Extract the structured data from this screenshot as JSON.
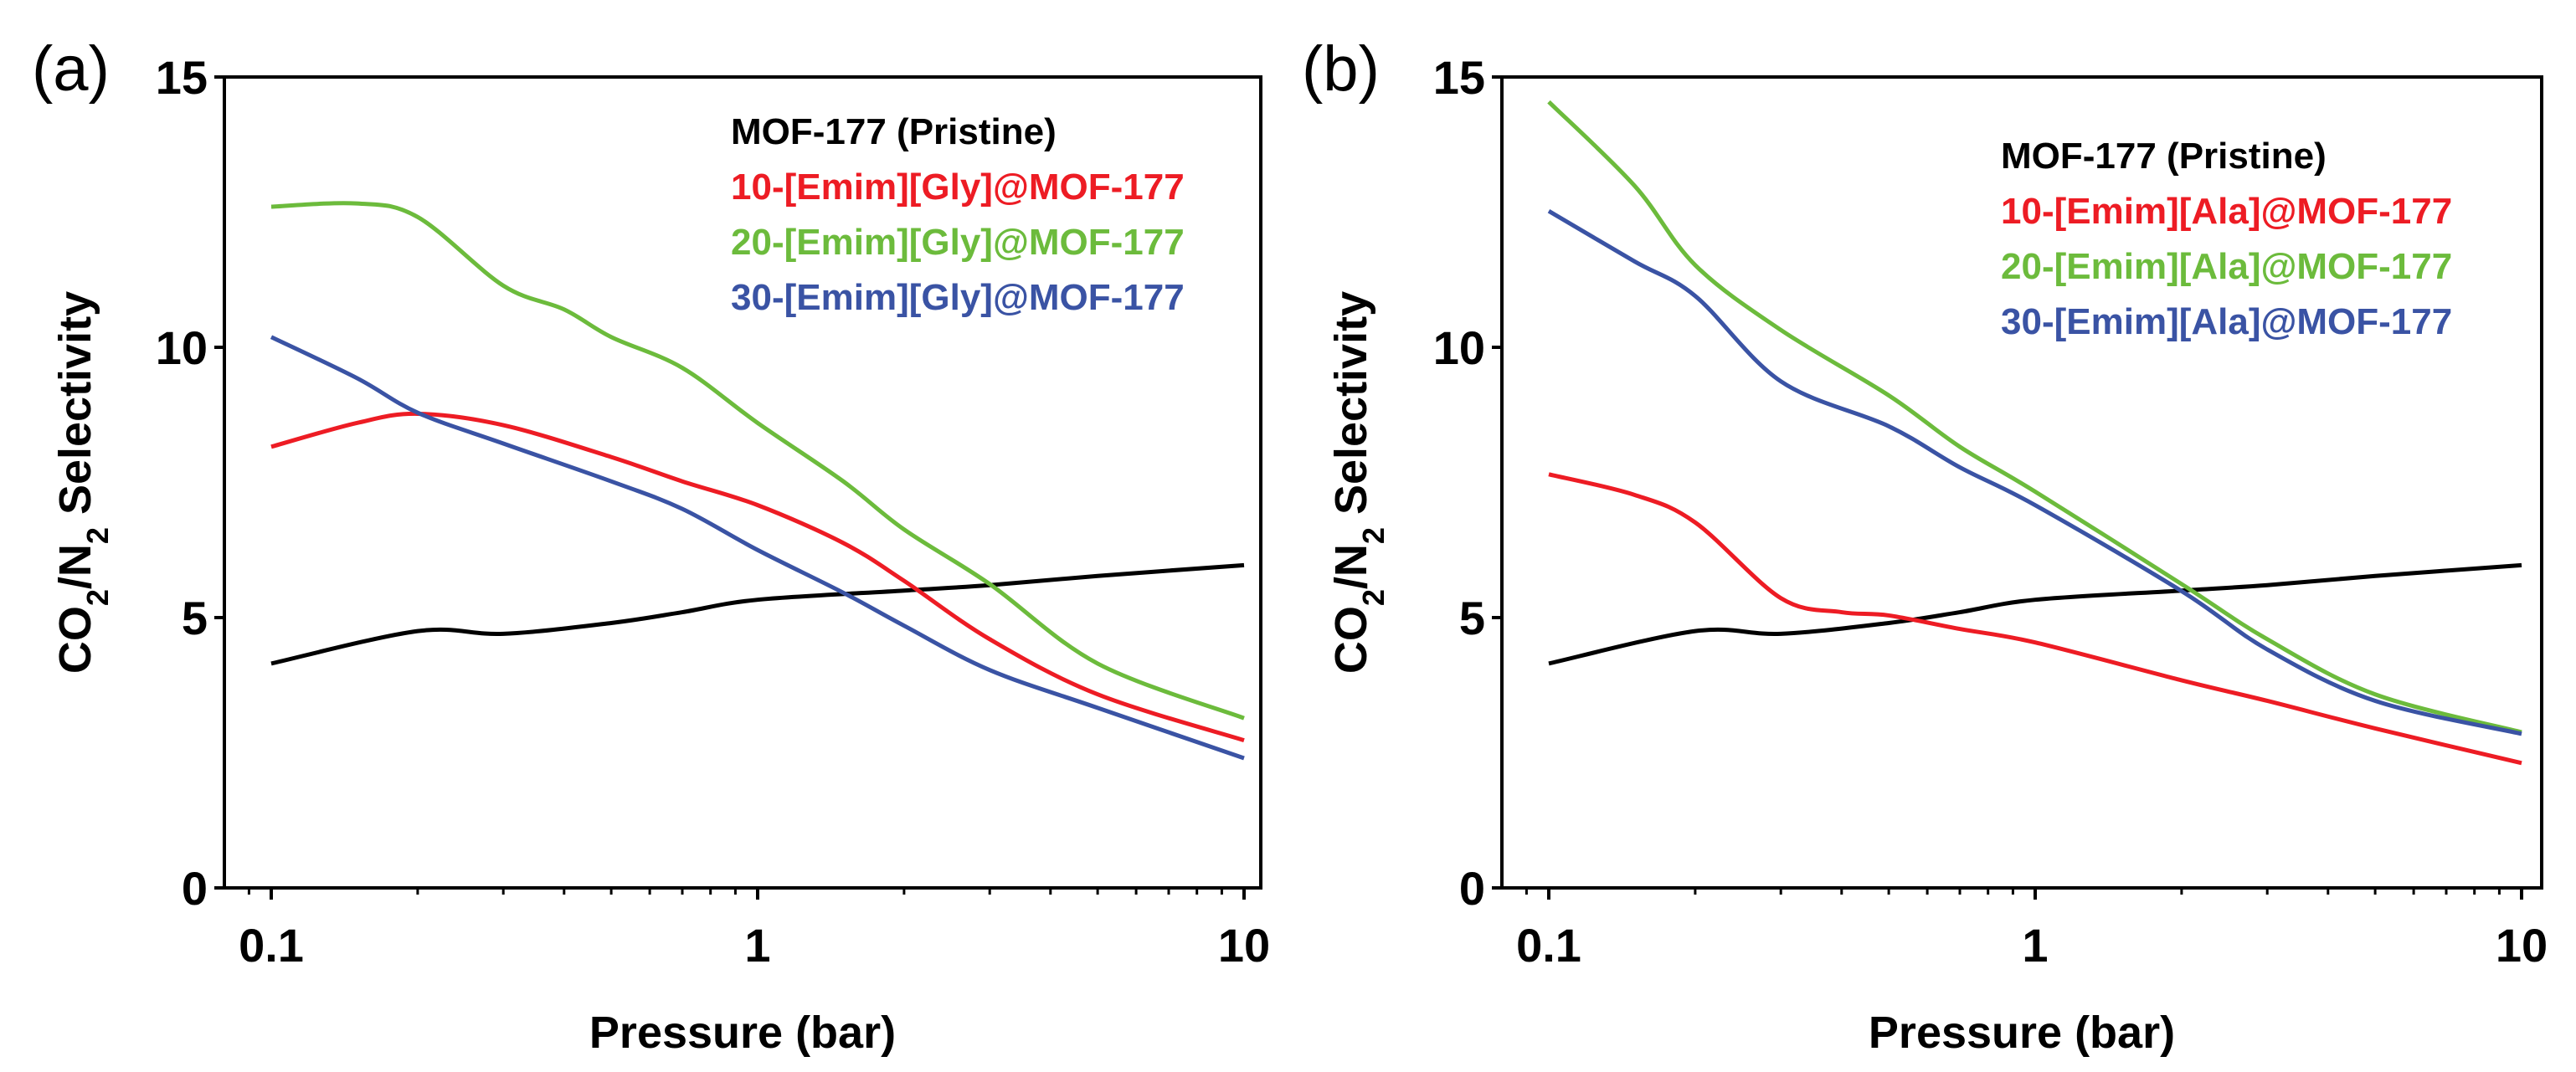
{
  "chart_data": [
    {
      "panel_label": "(a)",
      "type": "line",
      "xscale": "log",
      "xlim": [
        0.08,
        11
      ],
      "ylim": [
        0,
        15
      ],
      "xticks": [
        "0.1",
        "1",
        "10"
      ],
      "yticks": [
        "0",
        "5",
        "10",
        "15"
      ],
      "xlabel": "Pressure (bar)",
      "ylabel_parts": [
        "CO",
        "2",
        "/N",
        "2",
        " Selectivity"
      ],
      "grid": false,
      "legend_position": "top-right",
      "series": [
        {
          "name": "MOF-177 (Pristine)",
          "color": "#000000",
          "x": [
            0.1,
            0.2,
            0.3,
            0.5,
            0.7,
            1,
            2,
            3,
            5,
            10
          ],
          "y": [
            4.15,
            4.75,
            4.7,
            4.9,
            5.1,
            5.33,
            5.5,
            5.6,
            5.77,
            5.97
          ]
        },
        {
          "name": "10-[Emim][Gly]@MOF-177",
          "color": "#ed1c24",
          "x": [
            0.1,
            0.15,
            0.2,
            0.3,
            0.5,
            0.7,
            1,
            1.5,
            2,
            3,
            5,
            10
          ],
          "y": [
            8.16,
            8.6,
            8.77,
            8.56,
            7.97,
            7.52,
            7.08,
            6.38,
            5.68,
            4.6,
            3.58,
            2.73
          ]
        },
        {
          "name": "20-[Emim][Gly]@MOF-177",
          "color": "#6cbb3c",
          "x": [
            0.1,
            0.15,
            0.2,
            0.3,
            0.4,
            0.5,
            0.7,
            1,
            1.5,
            2,
            3,
            5,
            10
          ],
          "y": [
            12.6,
            12.66,
            12.41,
            11.14,
            10.7,
            10.19,
            9.62,
            8.6,
            7.52,
            6.63,
            5.62,
            4.15,
            3.14
          ]
        },
        {
          "name": "30-[Emim][Gly]@MOF-177",
          "color": "#3a53a4",
          "x": [
            0.1,
            0.15,
            0.2,
            0.3,
            0.5,
            0.7,
            1,
            1.5,
            2,
            3,
            5,
            10
          ],
          "y": [
            10.19,
            9.43,
            8.79,
            8.22,
            7.52,
            7.01,
            6.25,
            5.46,
            4.85,
            4.03,
            3.33,
            2.4
          ]
        }
      ]
    },
    {
      "panel_label": "(b)",
      "type": "line",
      "xscale": "log",
      "xlim": [
        0.08,
        11
      ],
      "ylim": [
        0,
        15
      ],
      "xticks": [
        "0.1",
        "1",
        "10"
      ],
      "yticks": [
        "0",
        "5",
        "10",
        "15"
      ],
      "xlabel": "Pressure (bar)",
      "ylabel_parts": [
        "CO",
        "2",
        "/N",
        "2",
        " Selectivity"
      ],
      "grid": false,
      "legend_position": "top-right",
      "series": [
        {
          "name": "MOF-177 (Pristine)",
          "color": "#000000",
          "x": [
            0.1,
            0.2,
            0.3,
            0.5,
            0.7,
            1,
            2,
            3,
            5,
            10
          ],
          "y": [
            4.15,
            4.75,
            4.7,
            4.9,
            5.1,
            5.33,
            5.5,
            5.6,
            5.77,
            5.97
          ]
        },
        {
          "name": "10-[Emim][Ala]@MOF-177",
          "color": "#ed1c24",
          "x": [
            0.1,
            0.15,
            0.2,
            0.3,
            0.4,
            0.5,
            0.7,
            1,
            2,
            3,
            5,
            10
          ],
          "y": [
            7.65,
            7.27,
            6.76,
            5.36,
            5.1,
            5.04,
            4.79,
            4.54,
            3.84,
            3.46,
            2.95,
            2.31
          ]
        },
        {
          "name": "20-[Emim][Ala]@MOF-177",
          "color": "#6cbb3c",
          "x": [
            0.1,
            0.15,
            0.2,
            0.3,
            0.5,
            0.7,
            1,
            2,
            3,
            5,
            10
          ],
          "y": [
            14.54,
            12.99,
            11.52,
            10.32,
            9.11,
            8.16,
            7.33,
            5.62,
            4.6,
            3.58,
            2.88
          ]
        },
        {
          "name": "30-[Emim][Ala]@MOF-177",
          "color": "#3a53a4",
          "x": [
            0.1,
            0.15,
            0.2,
            0.3,
            0.5,
            0.7,
            1,
            2,
            3,
            5,
            10
          ],
          "y": [
            12.52,
            11.59,
            10.95,
            9.37,
            8.54,
            7.78,
            7.08,
            5.49,
            4.41,
            3.46,
            2.85
          ]
        }
      ]
    }
  ]
}
